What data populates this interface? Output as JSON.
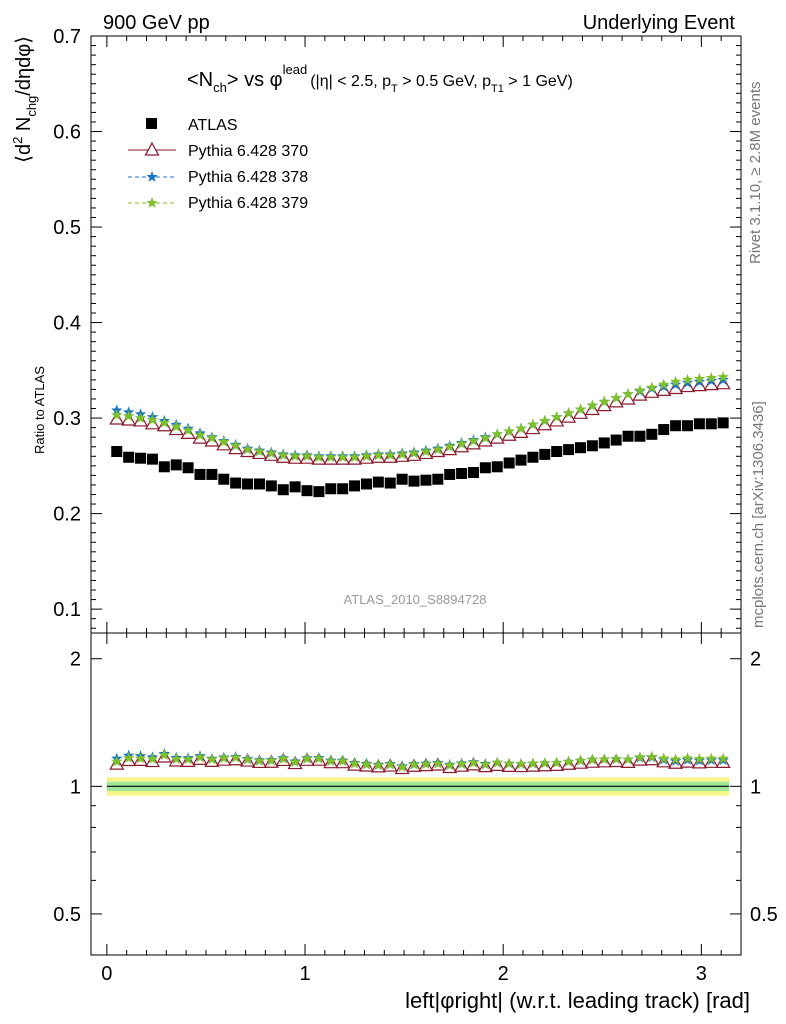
{
  "header": {
    "left": "900 GeV pp",
    "right": "Underlying Event"
  },
  "side_labels": {
    "rivet": "Rivet 3.1.10, ≥ 2.8M events",
    "mcplots": "mcplots.cern.ch [arXiv:1306.3436]"
  },
  "chart_data": {
    "type": "scatter",
    "title": "<N_ch> vs φ^lead (|η| < 2.5, p_T > 0.5 GeV, p_T1 > 1 GeV)",
    "title_parts": {
      "n": "<N",
      "n_sub": "ch",
      "vs": "> vs φ",
      "sup": "lead",
      "cut1": "(|η| < 2.5, p",
      "cut1_sub": "T",
      "cut2": " > 0.5 GeV, p",
      "cut2_sub": "T1",
      "cut3": " > 1 GeV)"
    },
    "watermark": "ATLAS_2010_S8894728",
    "ylabel": "⟨d² N_chg/dηdφ⟩",
    "ylabel_parts": {
      "a": "⟨d",
      "sup": "2",
      "b": " N",
      "sub": "chg",
      "c": "/dηdφ⟩"
    },
    "xlabel": "left|φright| (w.r.t. leading track) [rad]",
    "ratio_ylabel": "Ratio to ATLAS",
    "xlim": [
      -0.08,
      3.2
    ],
    "ylim": [
      0.075,
      0.7
    ],
    "ratio_ylim": [
      0.4,
      2.3
    ],
    "x_ticks": [
      "0",
      "1",
      "2",
      "3"
    ],
    "y_ticks": [
      "0.1",
      "0.2",
      "0.3",
      "0.4",
      "0.5",
      "0.6",
      "0.7"
    ],
    "ratio_ticks": [
      "0.5",
      "1",
      "2"
    ],
    "legend_position": "top-left",
    "x": [
      0.05,
      0.11,
      0.17,
      0.23,
      0.29,
      0.35,
      0.41,
      0.47,
      0.53,
      0.59,
      0.65,
      0.71,
      0.77,
      0.83,
      0.89,
      0.95,
      1.01,
      1.07,
      1.13,
      1.19,
      1.25,
      1.31,
      1.37,
      1.43,
      1.49,
      1.55,
      1.61,
      1.67,
      1.73,
      1.79,
      1.85,
      1.91,
      1.97,
      2.03,
      2.09,
      2.15,
      2.21,
      2.27,
      2.33,
      2.39,
      2.45,
      2.51,
      2.57,
      2.63,
      2.69,
      2.75,
      2.81,
      2.87,
      2.93,
      2.99,
      3.05,
      3.11
    ],
    "series": [
      {
        "name": "ATLAS",
        "color": "#000000",
        "marker": "square",
        "values": [
          0.265,
          0.259,
          0.258,
          0.257,
          0.249,
          0.251,
          0.248,
          0.241,
          0.241,
          0.236,
          0.232,
          0.231,
          0.231,
          0.229,
          0.225,
          0.228,
          0.224,
          0.223,
          0.226,
          0.226,
          0.229,
          0.231,
          0.233,
          0.232,
          0.236,
          0.234,
          0.235,
          0.236,
          0.241,
          0.242,
          0.243,
          0.248,
          0.249,
          0.253,
          0.256,
          0.259,
          0.262,
          0.265,
          0.267,
          0.269,
          0.271,
          0.274,
          0.277,
          0.281,
          0.281,
          0.283,
          0.288,
          0.292,
          0.292,
          0.294,
          0.294,
          0.295
        ]
      },
      {
        "name": "Pythia 6.428 370",
        "color": "#8b1a2e",
        "marker": "triangle-open",
        "values": [
          0.299,
          0.298,
          0.297,
          0.294,
          0.292,
          0.288,
          0.284,
          0.279,
          0.276,
          0.272,
          0.268,
          0.265,
          0.263,
          0.261,
          0.259,
          0.258,
          0.258,
          0.257,
          0.257,
          0.257,
          0.257,
          0.258,
          0.259,
          0.259,
          0.26,
          0.261,
          0.263,
          0.265,
          0.267,
          0.27,
          0.273,
          0.276,
          0.279,
          0.282,
          0.285,
          0.289,
          0.293,
          0.297,
          0.301,
          0.305,
          0.309,
          0.313,
          0.317,
          0.32,
          0.324,
          0.327,
          0.329,
          0.331,
          0.333,
          0.334,
          0.335,
          0.336
        ]
      },
      {
        "name": "Pythia 6.428 378",
        "color": "#1a73c9",
        "marker": "star",
        "values": [
          0.308,
          0.306,
          0.304,
          0.301,
          0.297,
          0.293,
          0.289,
          0.284,
          0.28,
          0.276,
          0.272,
          0.268,
          0.266,
          0.264,
          0.262,
          0.261,
          0.261,
          0.26,
          0.26,
          0.26,
          0.26,
          0.261,
          0.262,
          0.262,
          0.263,
          0.264,
          0.266,
          0.268,
          0.271,
          0.274,
          0.277,
          0.28,
          0.283,
          0.286,
          0.289,
          0.293,
          0.297,
          0.301,
          0.305,
          0.309,
          0.313,
          0.317,
          0.321,
          0.325,
          0.328,
          0.331,
          0.333,
          0.335,
          0.337,
          0.338,
          0.339,
          0.34
        ]
      },
      {
        "name": "Pythia 6.428 379",
        "color": "#7ec12a",
        "marker": "star",
        "values": [
          0.303,
          0.302,
          0.3,
          0.298,
          0.295,
          0.291,
          0.287,
          0.282,
          0.279,
          0.275,
          0.271,
          0.267,
          0.265,
          0.263,
          0.261,
          0.26,
          0.26,
          0.259,
          0.259,
          0.259,
          0.259,
          0.26,
          0.261,
          0.261,
          0.262,
          0.263,
          0.265,
          0.267,
          0.27,
          0.273,
          0.276,
          0.279,
          0.283,
          0.286,
          0.289,
          0.293,
          0.297,
          0.301,
          0.305,
          0.309,
          0.313,
          0.317,
          0.321,
          0.325,
          0.329,
          0.332,
          0.335,
          0.338,
          0.34,
          0.341,
          0.342,
          0.343
        ]
      }
    ]
  }
}
